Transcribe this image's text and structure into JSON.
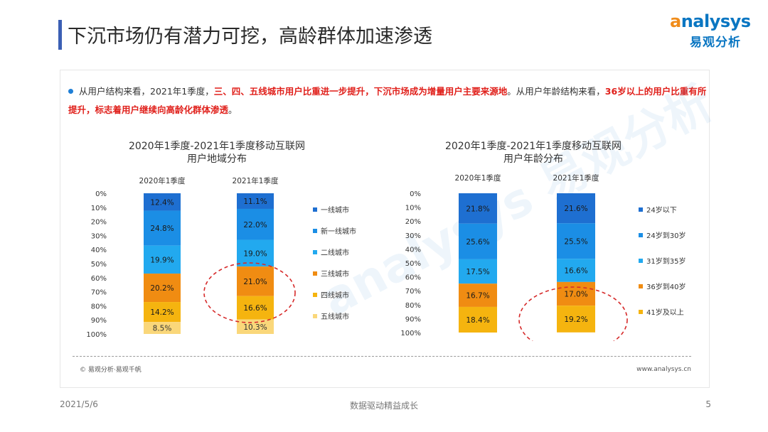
{
  "slide": {
    "title": "下沉市场仍有潜力可挖，高龄群体加速渗透",
    "logo_en_first": "a",
    "logo_en_rest": "nalysys",
    "logo_cn": "易观分析",
    "desc_parts": [
      {
        "text": "从用户结构来看，2021年1季度，",
        "hl": false
      },
      {
        "text": "三、四、五线城市用户比重进一步提升，下沉市场成为增量用户主要来源地",
        "hl": true
      },
      {
        "text": "。从用户年龄结构来看，",
        "hl": false
      },
      {
        "text": "36岁以上的用户比重有所提升，标志着用户继续向高龄化群体渗透",
        "hl": true
      },
      {
        "text": "。",
        "hl": false
      }
    ],
    "source": "© 易观分析·易观千帆",
    "site": "www.analysys.cn",
    "watermark": "analysys 易观分析",
    "footer": {
      "date": "2021/5/6",
      "center": "数据驱动精益成长",
      "page": "5"
    }
  },
  "colors": {
    "dark_blue": "#1e6fd1",
    "mid_blue": "#1b8ee5",
    "light_blue": "#22a9ef",
    "orange": "#f08c12",
    "gold": "#f5b40f",
    "pale_gold": "#fad77a",
    "dashed_ellipse": "#d62a2a",
    "title_bar": "#3b5fb4"
  },
  "chart_data": [
    {
      "type": "bar",
      "stacked": true,
      "title": "2020年1季度-2021年1季度移动互联网用户地域分布",
      "title_lines": [
        "2020年1季度-2021年1季度移动互联网",
        "用户地域分布"
      ],
      "categories": [
        "2020年1季度",
        "2021年1季度"
      ],
      "y_ticks": [
        "0%",
        "10%",
        "20%",
        "30%",
        "40%",
        "50%",
        "60%",
        "70%",
        "80%",
        "90%",
        "100%"
      ],
      "ylim": [
        0,
        100
      ],
      "y_inverted": true,
      "legend_position": "right",
      "highlight": "2021年1季度: 三线城市, 四线城市, 五线城市",
      "series": [
        {
          "name": "一线城市",
          "values": [
            12.4,
            11.1
          ],
          "labels": [
            "12.4%",
            "11.1%"
          ],
          "color": "#1e6fd1"
        },
        {
          "name": "新一线城市",
          "values": [
            24.8,
            22.0
          ],
          "labels": [
            "24.8%",
            "22.0%"
          ],
          "color": "#1b8ee5"
        },
        {
          "name": "二线城市",
          "values": [
            19.9,
            19.0
          ],
          "labels": [
            "19.9%",
            "19.0%"
          ],
          "color": "#22a9ef"
        },
        {
          "name": "三线城市",
          "values": [
            20.2,
            21.0
          ],
          "labels": [
            "20.2%",
            "21.0%"
          ],
          "color": "#f08c12"
        },
        {
          "name": "四线城市",
          "values": [
            14.2,
            16.6
          ],
          "labels": [
            "14.2%",
            "16.6%"
          ],
          "color": "#f5b40f"
        },
        {
          "name": "五线城市",
          "values": [
            8.5,
            10.3
          ],
          "labels": [
            "8.5%",
            "10.3%"
          ],
          "color": "#fad77a"
        }
      ]
    },
    {
      "type": "bar",
      "stacked": true,
      "title": "2020年1季度-2021年1季度移动互联网用户年龄分布",
      "title_lines": [
        "2020年1季度-2021年1季度移动互联网",
        "用户年龄分布"
      ],
      "categories": [
        "2020年1季度",
        "2021年1季度"
      ],
      "y_ticks": [
        "0%",
        "10%",
        "20%",
        "30%",
        "40%",
        "50%",
        "60%",
        "70%",
        "80%",
        "90%",
        "100%"
      ],
      "ylim": [
        0,
        100
      ],
      "y_inverted": true,
      "legend_position": "right",
      "highlight": "2021年1季度: 36岁到40岁, 41岁及以上",
      "series": [
        {
          "name": "24岁以下",
          "values": [
            21.8,
            21.6
          ],
          "labels": [
            "21.8%",
            "21.6%"
          ],
          "color": "#1e6fd1"
        },
        {
          "name": "24岁到30岁",
          "values": [
            25.6,
            25.5
          ],
          "labels": [
            "25.6%",
            "25.5%"
          ],
          "color": "#1b8ee5"
        },
        {
          "name": "31岁到35岁",
          "values": [
            17.5,
            16.6
          ],
          "labels": [
            "17.5%",
            "16.6%"
          ],
          "color": "#22a9ef"
        },
        {
          "name": "36岁到40岁",
          "values": [
            16.7,
            17.0
          ],
          "labels": [
            "16.7%",
            "17.0%"
          ],
          "color": "#f08c12"
        },
        {
          "name": "41岁及以上",
          "values": [
            18.4,
            19.2
          ],
          "labels": [
            "18.4%",
            "19.2%"
          ],
          "color": "#f5b40f"
        }
      ]
    }
  ]
}
